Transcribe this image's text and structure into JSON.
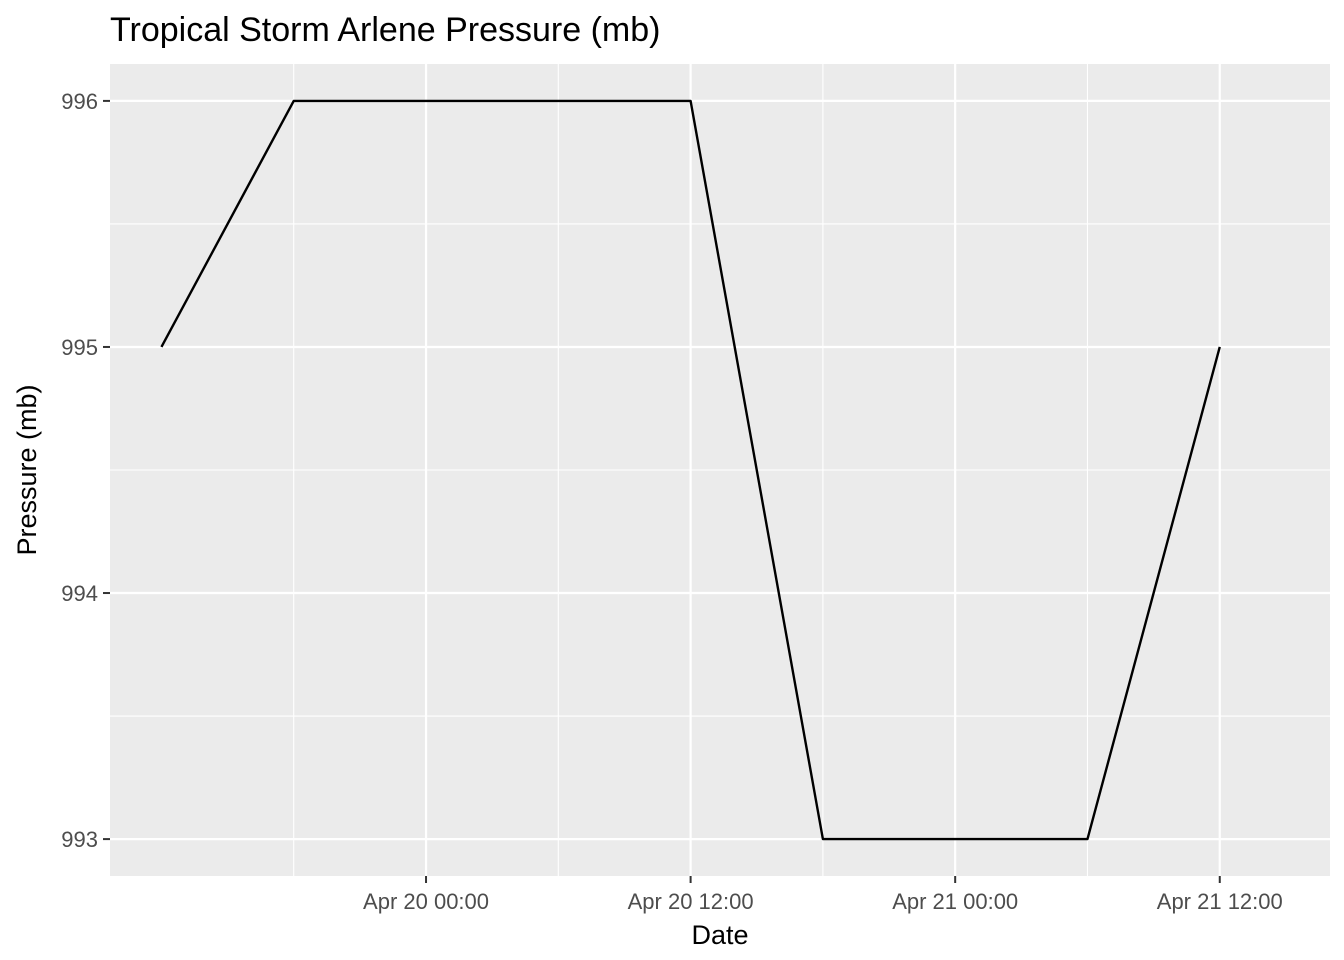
{
  "chart_data": {
    "type": "line",
    "title": "Tropical Storm Arlene Pressure (mb)",
    "xlabel": "Date",
    "ylabel": "Pressure (mb)",
    "x": [
      "Apr 19 12:00",
      "Apr 19 18:00",
      "Apr 20 00:00",
      "Apr 20 06:00",
      "Apr 20 12:00",
      "Apr 20 18:00",
      "Apr 21 00:00",
      "Apr 21 06:00",
      "Apr 21 12:00"
    ],
    "series": [
      {
        "values": [
          995,
          996,
          996,
          996,
          996,
          993,
          993,
          993,
          995
        ]
      }
    ],
    "x_ticks": [
      "Apr 20 00:00",
      "Apr 20 12:00",
      "Apr 21 00:00",
      "Apr 21 12:00"
    ],
    "y_ticks": [
      "993",
      "994",
      "995",
      "996"
    ],
    "xlim": [
      "Apr 19 09:40",
      "Apr 21 17:00"
    ],
    "ylim": [
      992.85,
      996.15
    ],
    "grid": true,
    "colors": {
      "panel": "#ebebeb",
      "grid": "#ffffff",
      "line": "#000000",
      "tick_text": "#4d4d4d",
      "tick_mark": "#333333"
    }
  }
}
